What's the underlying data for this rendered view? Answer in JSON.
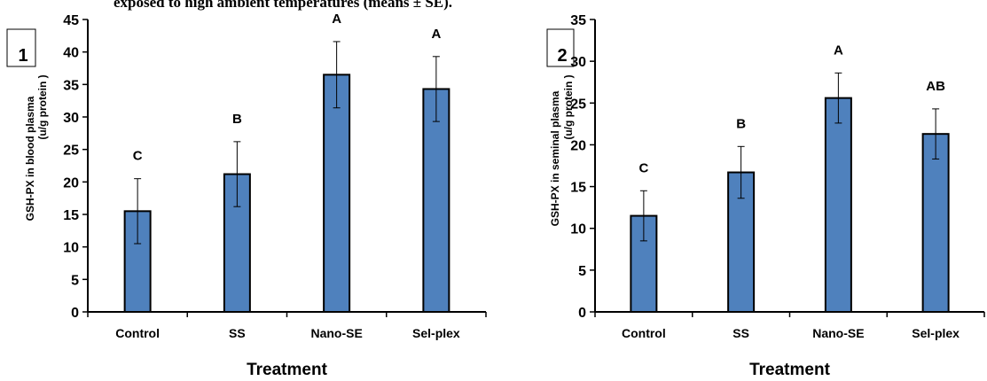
{
  "caption": "exposed to high ambient temperatures (means ± SE).",
  "colors": {
    "bar": "#4f81bd",
    "bar_edge": "#000000",
    "axis": "#000000"
  },
  "chart_data": [
    {
      "type": "bar",
      "panel_label": "1",
      "categories": [
        "Control",
        "SS",
        "Nano-SE",
        "Sel-plex"
      ],
      "values": [
        15.5,
        21.2,
        36.5,
        34.3
      ],
      "errors": [
        5.0,
        5.0,
        5.1,
        5.0
      ],
      "significance_letters": [
        "C",
        "B",
        "A",
        "A"
      ],
      "xlabel": "Treatment",
      "ylabel_lines": [
        "GSH-PX in blood plasma",
        "(u/g protein )"
      ],
      "ylim": [
        0,
        45
      ],
      "yticks": [
        0,
        5,
        10,
        15,
        20,
        25,
        30,
        35,
        40,
        45
      ],
      "grid": false
    },
    {
      "type": "bar",
      "panel_label": "2",
      "categories": [
        "Control",
        "SS",
        "Nano-SE",
        "Sel-plex"
      ],
      "values": [
        11.5,
        16.7,
        25.6,
        21.3
      ],
      "errors": [
        3.0,
        3.1,
        3.0,
        3.0
      ],
      "significance_letters": [
        "C",
        "B",
        "A",
        "AB"
      ],
      "xlabel": "Treatment",
      "ylabel_lines": [
        "GSH-PX in seminal plasma",
        "(u/g protein )"
      ],
      "ylim": [
        0,
        35
      ],
      "yticks": [
        0,
        5,
        10,
        15,
        20,
        25,
        30,
        35
      ],
      "grid": false
    }
  ]
}
